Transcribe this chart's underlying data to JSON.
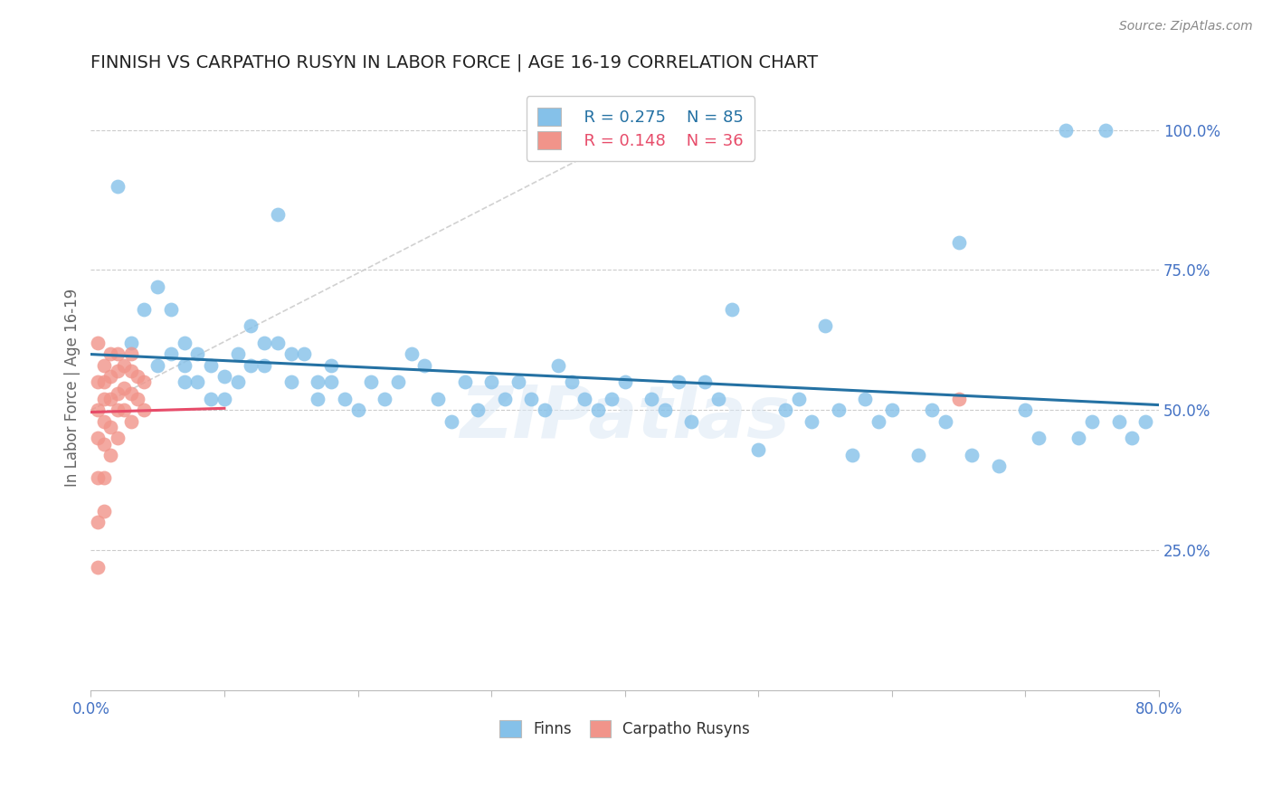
{
  "title": "FINNISH VS CARPATHO RUSYN IN LABOR FORCE | AGE 16-19 CORRELATION CHART",
  "source": "Source: ZipAtlas.com",
  "ylabel": "In Labor Force | Age 16-19",
  "yticks_right": [
    "100.0%",
    "75.0%",
    "50.0%",
    "25.0%"
  ],
  "yticks_right_vals": [
    1.0,
    0.75,
    0.5,
    0.25
  ],
  "xmin": 0.0,
  "xmax": 0.8,
  "ymin": 0.0,
  "ymax": 1.08,
  "legend_R_blue": "R = 0.275",
  "legend_N_blue": "N = 85",
  "legend_R_pink": "R = 0.148",
  "legend_N_pink": "N = 36",
  "label_blue": "Finns",
  "label_pink": "Carpatho Rusyns",
  "blue_color": "#85c1e9",
  "pink_color": "#f1948a",
  "trend_blue_color": "#2471a3",
  "trend_pink_color": "#e74c6a",
  "watermark_text": "ZIPatlas",
  "blue_scatter_x": [
    0.02,
    0.03,
    0.04,
    0.05,
    0.05,
    0.06,
    0.06,
    0.07,
    0.07,
    0.07,
    0.08,
    0.08,
    0.09,
    0.09,
    0.1,
    0.1,
    0.11,
    0.11,
    0.12,
    0.12,
    0.13,
    0.13,
    0.14,
    0.15,
    0.15,
    0.16,
    0.17,
    0.17,
    0.18,
    0.18,
    0.19,
    0.2,
    0.21,
    0.22,
    0.23,
    0.24,
    0.25,
    0.26,
    0.27,
    0.28,
    0.29,
    0.3,
    0.31,
    0.32,
    0.33,
    0.34,
    0.35,
    0.36,
    0.37,
    0.38,
    0.39,
    0.4,
    0.42,
    0.43,
    0.44,
    0.45,
    0.46,
    0.47,
    0.48,
    0.5,
    0.52,
    0.53,
    0.54,
    0.55,
    0.56,
    0.57,
    0.58,
    0.59,
    0.6,
    0.62,
    0.63,
    0.64,
    0.65,
    0.66,
    0.68,
    0.7,
    0.71,
    0.73,
    0.74,
    0.75,
    0.76,
    0.77,
    0.78,
    0.79,
    0.14
  ],
  "blue_scatter_y": [
    0.9,
    0.62,
    0.68,
    0.58,
    0.72,
    0.6,
    0.68,
    0.58,
    0.62,
    0.55,
    0.6,
    0.55,
    0.58,
    0.52,
    0.56,
    0.52,
    0.55,
    0.6,
    0.58,
    0.65,
    0.62,
    0.58,
    0.62,
    0.6,
    0.55,
    0.6,
    0.55,
    0.52,
    0.55,
    0.58,
    0.52,
    0.5,
    0.55,
    0.52,
    0.55,
    0.6,
    0.58,
    0.52,
    0.48,
    0.55,
    0.5,
    0.55,
    0.52,
    0.55,
    0.52,
    0.5,
    0.58,
    0.55,
    0.52,
    0.5,
    0.52,
    0.55,
    0.52,
    0.5,
    0.55,
    0.48,
    0.55,
    0.52,
    0.68,
    0.43,
    0.5,
    0.52,
    0.48,
    0.65,
    0.5,
    0.42,
    0.52,
    0.48,
    0.5,
    0.42,
    0.5,
    0.48,
    0.8,
    0.42,
    0.4,
    0.5,
    0.45,
    1.0,
    0.45,
    0.48,
    1.0,
    0.48,
    0.45,
    0.48,
    0.85
  ],
  "pink_scatter_x": [
    0.005,
    0.005,
    0.005,
    0.005,
    0.005,
    0.005,
    0.005,
    0.01,
    0.01,
    0.01,
    0.01,
    0.01,
    0.01,
    0.01,
    0.015,
    0.015,
    0.015,
    0.015,
    0.015,
    0.02,
    0.02,
    0.02,
    0.02,
    0.02,
    0.025,
    0.025,
    0.025,
    0.03,
    0.03,
    0.03,
    0.03,
    0.035,
    0.035,
    0.04,
    0.04,
    0.65
  ],
  "pink_scatter_y": [
    0.62,
    0.55,
    0.5,
    0.45,
    0.38,
    0.3,
    0.22,
    0.58,
    0.55,
    0.52,
    0.48,
    0.44,
    0.38,
    0.32,
    0.6,
    0.56,
    0.52,
    0.47,
    0.42,
    0.6,
    0.57,
    0.53,
    0.5,
    0.45,
    0.58,
    0.54,
    0.5,
    0.6,
    0.57,
    0.53,
    0.48,
    0.56,
    0.52,
    0.55,
    0.5,
    0.52
  ]
}
